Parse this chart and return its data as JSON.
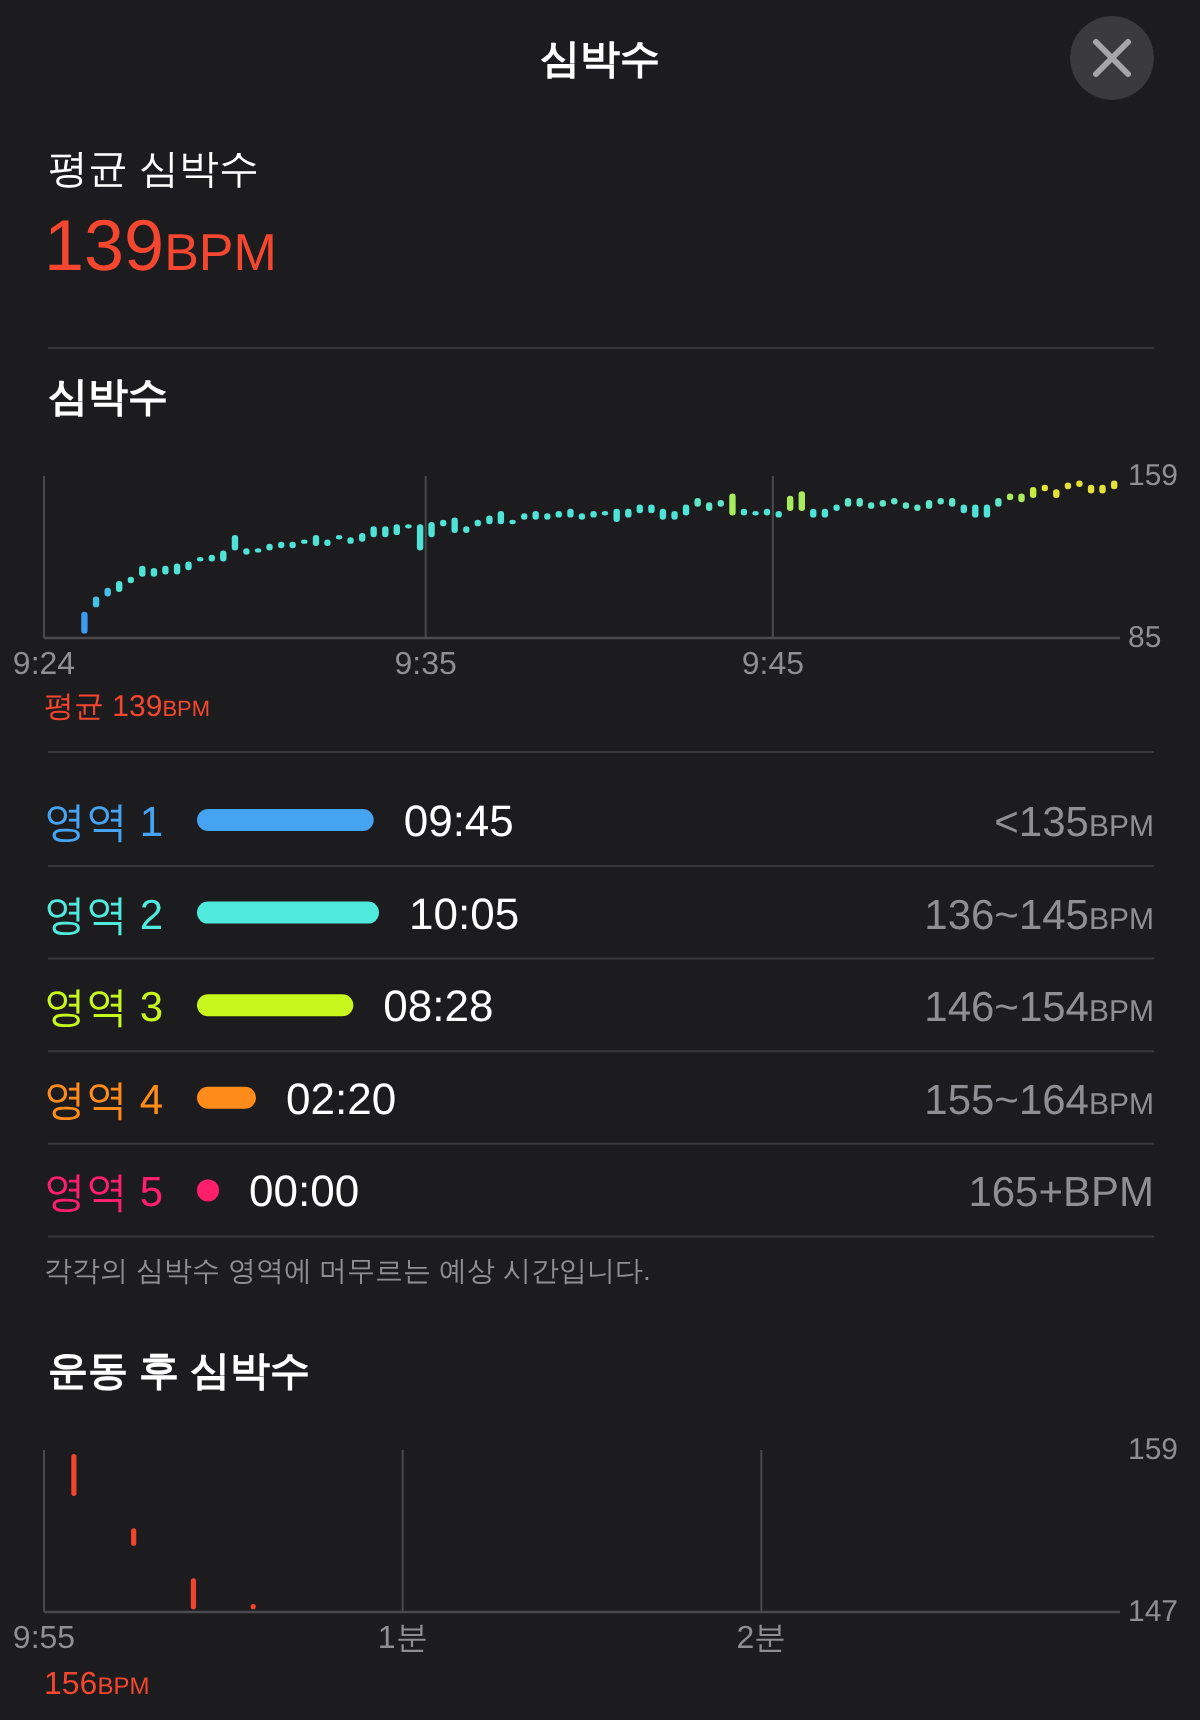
{
  "chart_data": [
    {
      "type": "other",
      "title": "심박수",
      "annotations": [
        "평균 심박수",
        "139BPM"
      ]
    },
    {
      "type": "bar",
      "title": "심박수",
      "x": [
        9.4194,
        9.425,
        9.4306,
        9.4361,
        9.4417,
        9.4472,
        9.4528,
        9.4583,
        9.4639,
        9.4694,
        9.475,
        9.4806,
        9.4861,
        9.4917,
        9.4972,
        9.5028,
        9.5083,
        9.5139,
        9.5194,
        9.525,
        9.5306,
        9.5361,
        9.5417,
        9.5472,
        9.5528,
        9.5583,
        9.5639,
        9.5694,
        9.575,
        9.5806,
        9.5861,
        9.5917,
        9.5972,
        9.6028,
        9.6083,
        9.6139,
        9.6194,
        9.625,
        9.6306,
        9.6361,
        9.6417,
        9.6472,
        9.6528,
        9.6583,
        9.6639,
        9.6694,
        9.675,
        9.6806,
        9.6861,
        9.6917,
        9.6972,
        9.7028,
        9.7083,
        9.7139,
        9.7194,
        9.725,
        9.7306,
        9.7361,
        9.7417,
        9.7472,
        9.7528,
        9.7583,
        9.7639,
        9.7694,
        9.775,
        9.7806,
        9.7861,
        9.7917,
        9.7972,
        9.8028,
        9.8083,
        9.8139,
        9.8194,
        9.825,
        9.8306,
        9.8361,
        9.8417,
        9.8472,
        9.8528,
        9.8583,
        9.8639,
        9.8694,
        9.875,
        9.8806,
        9.8861,
        9.8917,
        9.8972,
        9.9028,
        9.9083,
        9.9139
      ],
      "base": [
        87,
        99,
        104,
        106,
        110,
        113,
        113,
        114,
        114,
        116,
        120,
        120,
        120,
        125,
        123,
        124,
        125,
        126,
        126,
        128,
        127,
        127,
        130,
        128,
        129,
        131,
        131,
        132,
        135,
        125,
        131,
        136,
        133,
        133,
        136,
        137,
        137,
        137,
        139,
        139,
        139,
        140,
        140,
        139,
        140,
        141,
        138,
        140,
        142,
        142,
        139,
        139,
        141,
        145,
        143,
        145,
        141,
        141,
        141,
        141,
        140,
        143,
        143,
        140,
        140,
        143,
        145,
        145,
        144,
        145,
        146,
        144,
        143,
        144,
        146,
        145,
        142,
        140,
        140,
        145,
        148,
        147,
        149,
        152,
        149,
        153,
        154,
        151,
        151,
        153
      ],
      "values": [
        10,
        5,
        4,
        5,
        3,
        5,
        4,
        4,
        5,
        4,
        2,
        3,
        5,
        7,
        3,
        2,
        3,
        3,
        3,
        2,
        5,
        3,
        2,
        3,
        4,
        5,
        5,
        5,
        2,
        12,
        7,
        3,
        7,
        3,
        3,
        4,
        6,
        2,
        3,
        4,
        3,
        3,
        4,
        3,
        3,
        2,
        6,
        4,
        4,
        4,
        5,
        4,
        5,
        4,
        4,
        3,
        10,
        3,
        2,
        3,
        3,
        7,
        9,
        4,
        4,
        3,
        4,
        4,
        3,
        3,
        3,
        3,
        3,
        4,
        3,
        4,
        4,
        6,
        6,
        4,
        3,
        4,
        5,
        3,
        4,
        3,
        3,
        4,
        4,
        4
      ],
      "colors": [
        "#3b9cf0",
        "#45bfe6",
        "#45bfe6",
        "#4fe2d6",
        "#4fe2d6",
        "#4fe2d6",
        "#4fe2d6",
        "#4fe2d6",
        "#4fe2d6",
        "#4fe2d6",
        "#4fe2d6",
        "#4fe2d6",
        "#4fe2d6",
        "#4fe2d6",
        "#4fe2d6",
        "#4fe2d6",
        "#4fe2d6",
        "#4fe2d6",
        "#4fe2d6",
        "#4fe2d6",
        "#4fe2d6",
        "#4fe2d6",
        "#4fe2d6",
        "#4fe2d6",
        "#4fe2d6",
        "#4fe2d6",
        "#4fe2d6",
        "#4fe2d6",
        "#4fe2d6",
        "#4fe2d6",
        "#4fe2d6",
        "#4fe2d6",
        "#4fe2d6",
        "#4fe2d6",
        "#4fe2d6",
        "#4fe2d6",
        "#4fe2d6",
        "#4fe2d6",
        "#4fe2d6",
        "#4fe2d6",
        "#4fe2d6",
        "#4fe2d6",
        "#4fe2d6",
        "#4fe2d6",
        "#4fe2d6",
        "#4fe2d6",
        "#4fe2d6",
        "#4fe2d6",
        "#4fe2d6",
        "#4fe2d6",
        "#4fe2d6",
        "#4fe2d6",
        "#4fe2d6",
        "#5ee6c6",
        "#5ee6c6",
        "#5ee6c6",
        "#a6ec5c",
        "#4fe2d6",
        "#4fe2d6",
        "#4fe2d6",
        "#4fe2d6",
        "#a6ec5c",
        "#a6ec5c",
        "#4fe2d6",
        "#4fe2d6",
        "#4fe2d6",
        "#5ee6c6",
        "#5ee6c6",
        "#5ee6c6",
        "#5ee6c6",
        "#5ee6c6",
        "#5ee6c6",
        "#5ee6c6",
        "#5ee6c6",
        "#5ee6c6",
        "#5ee6c6",
        "#4fe2d6",
        "#4fe2d6",
        "#4fe2d6",
        "#5ee6c6",
        "#a6ec5c",
        "#a6ec5c",
        "#c6ec40",
        "#e4e238",
        "#e4e238",
        "#e4e238",
        "#e4e238",
        "#e4e238",
        "#e4e238",
        "#e4e238"
      ],
      "xlim": [
        9.4,
        9.9167
      ],
      "xticks": [
        {
          "value": 9.4,
          "label": "9:24"
        },
        {
          "value": 9.5833,
          "label": "9:35"
        },
        {
          "value": 9.75,
          "label": "9:45"
        }
      ],
      "ylim": [
        85,
        159
      ],
      "yticks": [
        85,
        159
      ],
      "grid": "x",
      "annotations": [
        "평균 139BPM"
      ]
    },
    {
      "type": "bar",
      "orientation": "horizontal",
      "categories": [
        "영역 1",
        "영역 2",
        "영역 3",
        "영역 4",
        "영역 5"
      ],
      "values": [
        585,
        605,
        508,
        140,
        0
      ],
      "value_labels": [
        "09:45",
        "10:05",
        "08:28",
        "02:20",
        "00:00"
      ],
      "colors": [
        "#45a3f2",
        "#50e9dd",
        "#c8f71e",
        "#ff8c1a",
        "#ff1f6b"
      ],
      "annotations": [
        "<135BPM",
        "136~145BPM",
        "146~154BPM",
        "155~164BPM",
        "165+BPM",
        "각각의 심박수 영역에 머무르는 예상 시간입니다."
      ]
    },
    {
      "type": "bar",
      "title": "운동 후 심박수",
      "categories": [
        "9:55",
        null,
        null,
        null,
        null,
        null,
        null,
        null,
        null,
        null,
        null,
        null,
        "1분",
        null,
        null,
        null,
        null,
        null,
        null,
        null,
        null,
        null,
        null,
        null,
        "2분",
        null,
        null,
        null,
        null,
        null,
        null,
        null,
        null,
        null,
        null,
        null,
        null
      ],
      "base": [
        null,
        155.6,
        null,
        151.9,
        null,
        147.2,
        null,
        147.2,
        null,
        null,
        null,
        null,
        null,
        null,
        null,
        null,
        null,
        null,
        null,
        null,
        null,
        null,
        null,
        null,
        null,
        null,
        null,
        null,
        null,
        null,
        null,
        null,
        null,
        null,
        null,
        null,
        null
      ],
      "values": [
        null,
        3.1,
        null,
        1.3,
        null,
        2.3,
        null,
        0.4,
        null,
        null,
        null,
        null,
        null,
        null,
        null,
        null,
        null,
        null,
        null,
        null,
        null,
        null,
        null,
        null,
        null,
        null,
        null,
        null,
        null,
        null,
        null,
        null,
        null,
        null,
        null,
        null,
        null
      ],
      "colors": [
        null,
        "#f0452c",
        null,
        "#f0452c",
        null,
        "#f0452c",
        null,
        "#f0452c",
        null,
        null,
        null,
        null,
        null,
        null,
        null,
        null,
        null,
        null,
        null,
        null,
        null,
        null,
        null,
        null,
        null,
        null,
        null,
        null,
        null,
        null,
        null,
        null,
        null,
        null,
        null,
        null,
        null
      ],
      "ylim": [
        147,
        159
      ],
      "yticks": [
        147,
        159
      ],
      "grid": "x",
      "annotations": [
        "156BPM"
      ]
    }
  ]
}
